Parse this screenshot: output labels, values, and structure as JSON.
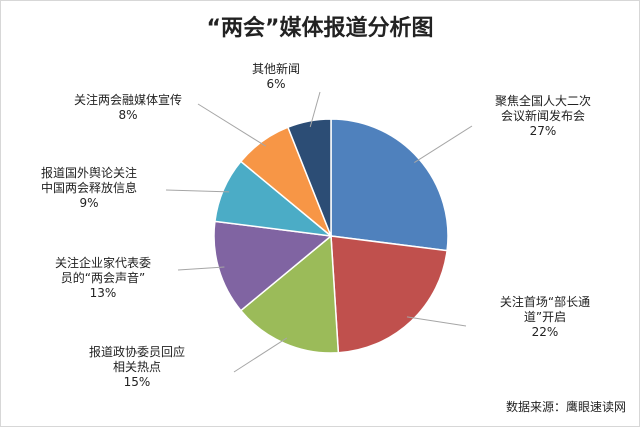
{
  "chart_data": {
    "type": "pie",
    "title": "“两会”媒体报道分析图",
    "source": "数据来源：鹰眼速读网",
    "slices": [
      {
        "lines": [
          "聚焦全国人大二次",
          "会议新闻发布会"
        ],
        "pct": "27%",
        "value": 27,
        "color": "#4f81bd"
      },
      {
        "lines": [
          "关注首场“部长通",
          "道”开启"
        ],
        "pct": "22%",
        "value": 22,
        "color": "#c0504d"
      },
      {
        "lines": [
          "报道政协委员回应",
          "相关热点"
        ],
        "pct": "15%",
        "value": 15,
        "color": "#9bbb59"
      },
      {
        "lines": [
          "关注企业家代表委",
          "员的“两会声音”"
        ],
        "pct": "13%",
        "value": 13,
        "color": "#8064a2"
      },
      {
        "lines": [
          "报道国外舆论关注",
          "中国两会释放信息"
        ],
        "pct": "9%",
        "value": 9,
        "color": "#4bacc6"
      },
      {
        "lines": [
          "关注两会融媒体宣传"
        ],
        "pct": "8%",
        "value": 8,
        "color": "#f79646"
      },
      {
        "lines": [
          "其他新闻"
        ],
        "pct": "6%",
        "value": 6,
        "color": "#2c4d75"
      }
    ]
  }
}
